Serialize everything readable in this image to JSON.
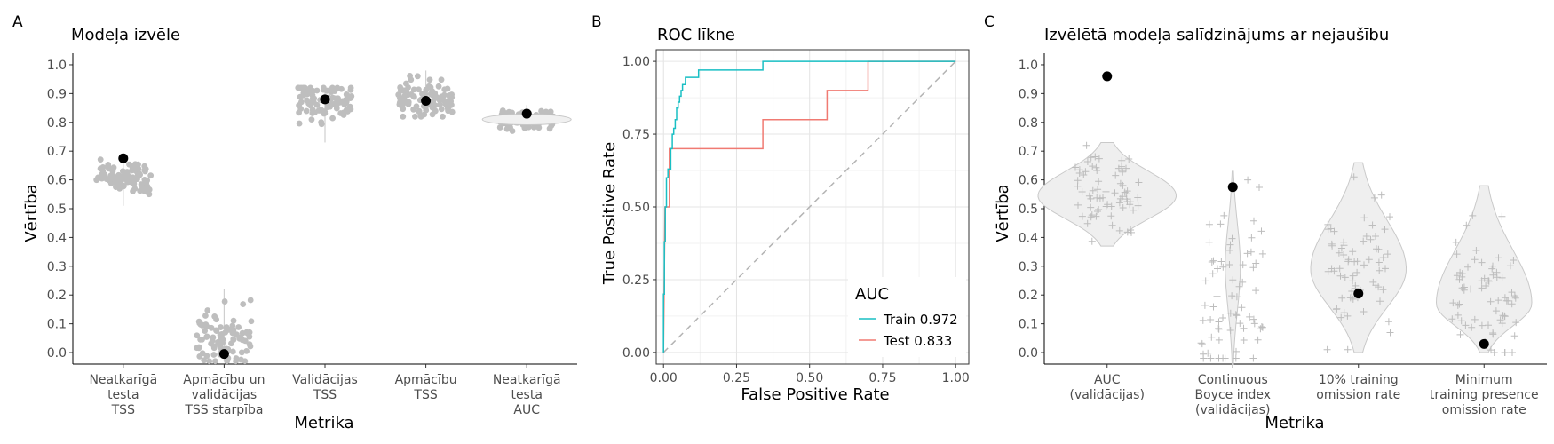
{
  "chart_data": [
    {
      "panel": "A",
      "type": "scatter",
      "title": "Modeļa izvēle",
      "xlabel": "Metrika",
      "ylabel": "Vērtība",
      "ylim": [
        -0.04,
        1.04
      ],
      "yticks": [
        "0.0",
        "0.1",
        "0.2",
        "0.3",
        "0.4",
        "0.5",
        "0.6",
        "0.7",
        "0.8",
        "0.9",
        "1.0"
      ],
      "categories": [
        [
          "Neatkarīgā",
          "testa",
          "TSS"
        ],
        [
          "Apmācību un",
          "validācijas",
          "TSS starpība"
        ],
        [
          "Validācijas",
          "TSS"
        ],
        [
          "Apmācību",
          "TSS"
        ],
        [
          "Neatkarīgā",
          "testa",
          "AUC"
        ]
      ],
      "grid": false,
      "series": [
        {
          "name": "",
          "type": "jitter-points",
          "color": "#bebebe",
          "spread": [
            {
              "center": 0.61,
              "sd": 0.03,
              "min": 0.51,
              "max": 0.68
            },
            {
              "center": 0.05,
              "sd": 0.05,
              "min": -0.03,
              "max": 0.22
            },
            {
              "center": 0.87,
              "sd": 0.035,
              "min": 0.73,
              "max": 0.92
            },
            {
              "center": 0.89,
              "sd": 0.035,
              "min": 0.82,
              "max": 0.98
            },
            {
              "center": 0.81,
              "sd": 0.015,
              "min": 0.77,
              "max": 0.86
            }
          ]
        },
        {
          "name": "",
          "type": "selected-point",
          "color": "#000000",
          "values": [
            0.675,
            -0.005,
            0.88,
            0.875,
            0.83
          ]
        }
      ]
    },
    {
      "panel": "B",
      "type": "line",
      "title": "ROC līkne",
      "xlabel": "False Positive Rate",
      "ylabel": "True Positive Rate",
      "xlim": [
        -0.025,
        1.045
      ],
      "ylim": [
        -0.04,
        1.04
      ],
      "xticks": [
        "0.00",
        "0.25",
        "0.50",
        "0.75",
        "1.00"
      ],
      "yticks": [
        "0.00",
        "0.25",
        "0.50",
        "0.75",
        "1.00"
      ],
      "grid": true,
      "legend": {
        "title": "AUC",
        "position": "bottom-right"
      },
      "series": [
        {
          "name": "Train 0.972",
          "color": "#19bfc4",
          "points": [
            [
              0,
              0
            ],
            [
              0,
              0.2
            ],
            [
              0.003,
              0.2
            ],
            [
              0.003,
              0.38
            ],
            [
              0.006,
              0.38
            ],
            [
              0.006,
              0.5
            ],
            [
              0.01,
              0.5
            ],
            [
              0.01,
              0.6
            ],
            [
              0.015,
              0.6
            ],
            [
              0.015,
              0.63
            ],
            [
              0.025,
              0.63
            ],
            [
              0.025,
              0.7
            ],
            [
              0.03,
              0.7
            ],
            [
              0.03,
              0.75
            ],
            [
              0.035,
              0.75
            ],
            [
              0.035,
              0.77
            ],
            [
              0.04,
              0.77
            ],
            [
              0.04,
              0.8
            ],
            [
              0.045,
              0.8
            ],
            [
              0.045,
              0.84
            ],
            [
              0.05,
              0.84
            ],
            [
              0.05,
              0.86
            ],
            [
              0.055,
              0.86
            ],
            [
              0.055,
              0.88
            ],
            [
              0.06,
              0.88
            ],
            [
              0.06,
              0.9
            ],
            [
              0.065,
              0.9
            ],
            [
              0.065,
              0.92
            ],
            [
              0.075,
              0.92
            ],
            [
              0.075,
              0.945
            ],
            [
              0.12,
              0.945
            ],
            [
              0.12,
              0.97
            ],
            [
              0.34,
              0.97
            ],
            [
              0.34,
              1.0
            ],
            [
              1.0,
              1.0
            ]
          ]
        },
        {
          "name": "Test 0.833",
          "color": "#f07a72",
          "points": [
            [
              0,
              0
            ],
            [
              0.005,
              0.5
            ],
            [
              0.02,
              0.5
            ],
            [
              0.02,
              0.7
            ],
            [
              0.34,
              0.7
            ],
            [
              0.34,
              0.8
            ],
            [
              0.56,
              0.8
            ],
            [
              0.56,
              0.9
            ],
            [
              0.7,
              0.9
            ],
            [
              0.7,
              1.0
            ],
            [
              1.0,
              1.0
            ]
          ]
        },
        {
          "name": "",
          "color": "#b3b3b3",
          "dashed": true,
          "points": [
            [
              0,
              0
            ],
            [
              1,
              1
            ]
          ]
        }
      ]
    },
    {
      "panel": "C",
      "type": "scatter",
      "title": "Izvēlētā modeļa salīdzinājums ar nejaušību",
      "xlabel": "Metrika",
      "ylabel": "Vērtība",
      "ylim": [
        -0.04,
        1.04
      ],
      "yticks": [
        "0.0",
        "0.1",
        "0.2",
        "0.3",
        "0.4",
        "0.5",
        "0.6",
        "0.7",
        "0.8",
        "0.9",
        "1.0"
      ],
      "categories": [
        [
          "AUC",
          "(validācijas)"
        ],
        [
          "Continuous",
          "Boyce index",
          "(validācijas)"
        ],
        [
          "10% training",
          "omission rate"
        ],
        [
          "Minimum",
          "training presence",
          "omission rate"
        ]
      ],
      "grid": false,
      "violins": [
        {
          "min": 0.37,
          "max": 0.73,
          "mode": 0.545,
          "maxhalfwidth": 0.55
        },
        {
          "min": -0.04,
          "max": 0.63,
          "mode": 0.3,
          "maxhalfwidth": 0.06
        },
        {
          "min": 0.0,
          "max": 0.66,
          "mode": 0.29,
          "maxhalfwidth": 0.38
        },
        {
          "min": 0.0,
          "max": 0.58,
          "mode": 0.17,
          "maxhalfwidth": 0.38
        }
      ],
      "series": [
        {
          "name": "",
          "type": "random-jitter",
          "color": "#bdbdbd",
          "spread": [
            {
              "center": 0.55,
              "sd": 0.08,
              "min": 0.37,
              "max": 0.72
            },
            {
              "center": 0.15,
              "sd": 0.2,
              "min": -0.02,
              "max": 0.6
            },
            {
              "center": 0.3,
              "sd": 0.13,
              "min": 0.01,
              "max": 0.66
            },
            {
              "center": 0.18,
              "sd": 0.11,
              "min": 0.0,
              "max": 0.58
            }
          ]
        },
        {
          "name": "",
          "type": "selected-model",
          "color": "#000000",
          "values": [
            0.96,
            0.575,
            0.205,
            0.03
          ]
        }
      ]
    }
  ],
  "panels": {
    "a": {
      "letter": "A",
      "title": "Modeļa izvēle",
      "xlabel": "Metrika",
      "ylabel": "Vērtība"
    },
    "b": {
      "letter": "B",
      "title": "ROC līkne",
      "xlabel": "False Positive Rate",
      "ylabel": "True Positive Rate",
      "legend_title": "AUC",
      "legend_train": "Train 0.972",
      "legend_test": "Test 0.833"
    },
    "c": {
      "letter": "C",
      "title": "Izvēlētā modeļa salīdzinājums ar nejaušību",
      "xlabel": "Metrika",
      "ylabel": "Vērtība"
    }
  }
}
